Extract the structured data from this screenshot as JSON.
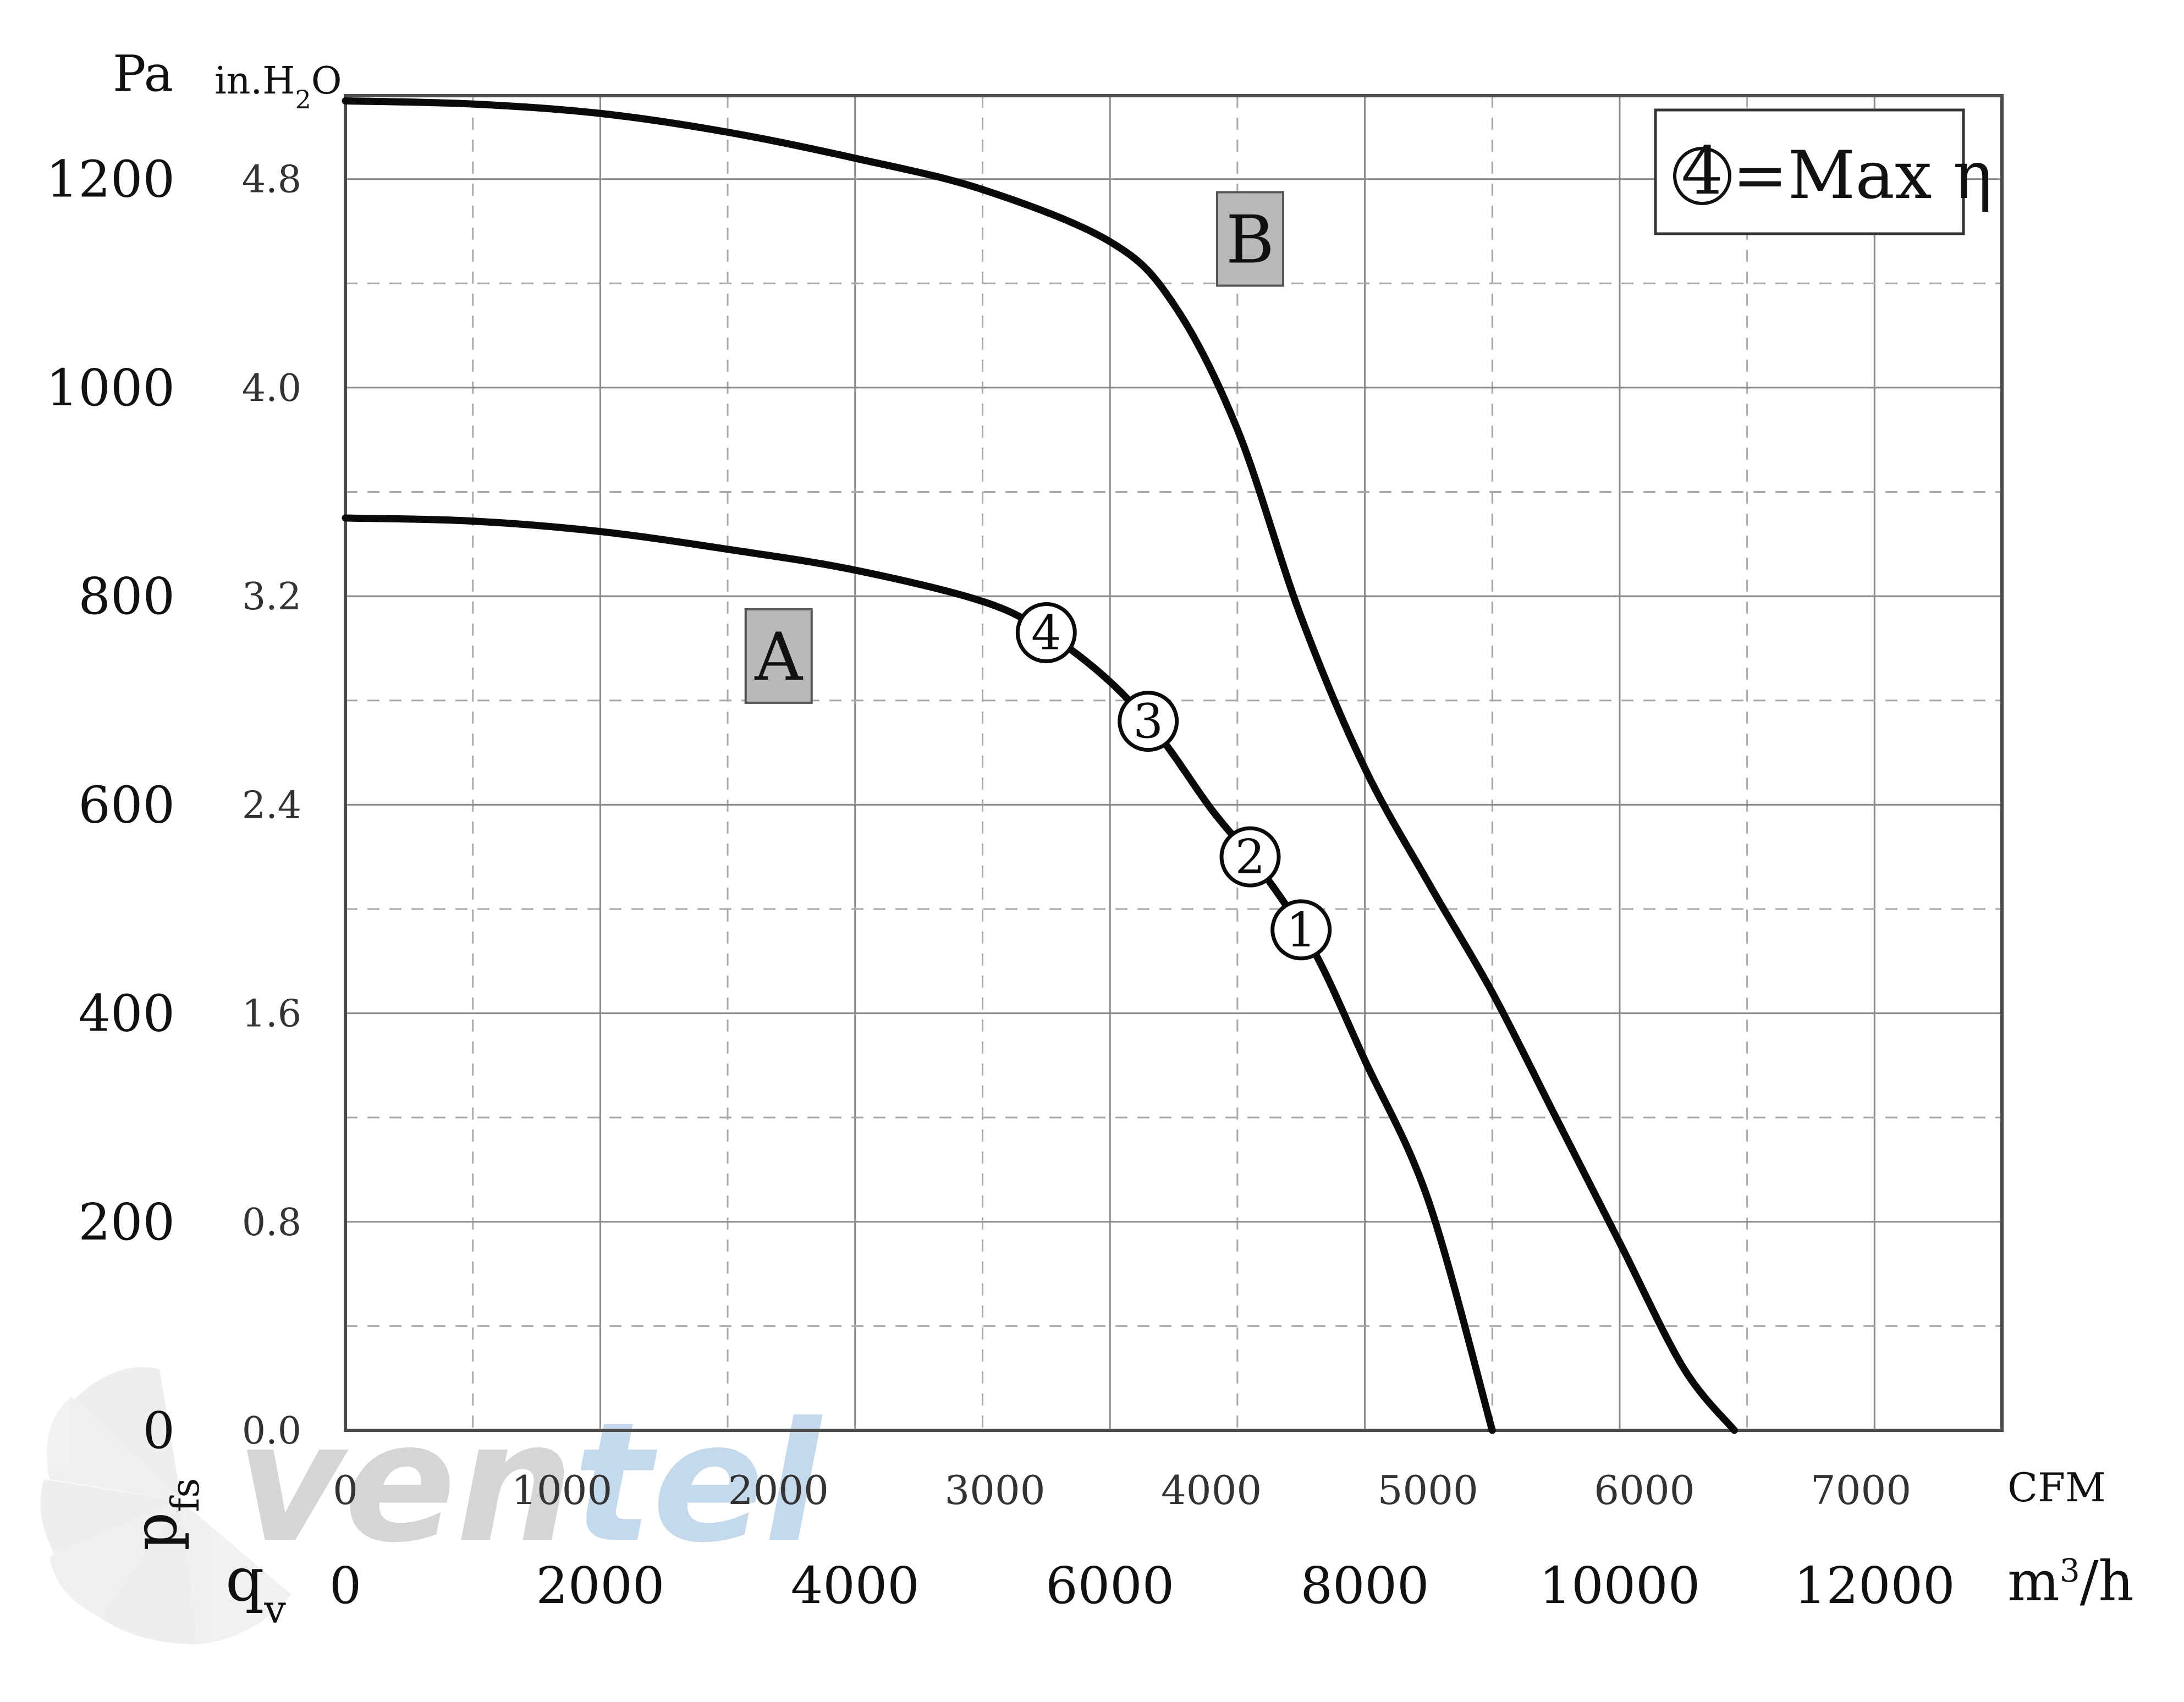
{
  "chart_data": {
    "type": "line",
    "title": "",
    "y_axis_primary": {
      "unit": "Pa",
      "ticks": [
        "0",
        "200",
        "400",
        "600",
        "800",
        "1000",
        "1200"
      ],
      "ylim": [
        0,
        1280
      ]
    },
    "y_axis_secondary": {
      "unit_main": "in.H",
      "unit_sub": "2",
      "unit_end": "O",
      "ticks": [
        "0.0",
        "0.8",
        "1.6",
        "2.4",
        "3.2",
        "4.0",
        "4.8"
      ]
    },
    "x_axis_cfm": {
      "unit": "CFM",
      "ticks": [
        "0",
        "1000",
        "2000",
        "3000",
        "4000",
        "5000",
        "6000",
        "7000"
      ]
    },
    "x_axis_m3h": {
      "unit_main": "m",
      "unit_sup": "3",
      "unit_end": "/h",
      "ticks": [
        "0",
        "2000",
        "4000",
        "6000",
        "8000",
        "10000",
        "12000"
      ],
      "xlim": [
        0,
        13000
      ]
    },
    "ylabel_symbol": {
      "main": "p",
      "sub": "fs"
    },
    "xlabel_symbol": {
      "main": "q",
      "sub": "v"
    },
    "series": [
      {
        "name": "A",
        "x": [
          0,
          1000,
          2000,
          3000,
          4000,
          5000,
          5500,
          6000,
          6400,
          6800,
          7200,
          7600,
          8000,
          8500,
          9000
        ],
        "y": [
          875,
          872,
          862,
          845,
          825,
          795,
          765,
          718,
          664,
          595,
          535,
          460,
          355,
          220,
          0
        ]
      },
      {
        "name": "B",
        "x": [
          0,
          1000,
          2000,
          3000,
          4000,
          5000,
          6000,
          6500,
          7000,
          7500,
          8000,
          8500,
          9000,
          9500,
          10000,
          10500,
          10900
        ],
        "y": [
          1275,
          1272,
          1263,
          1245,
          1220,
          1190,
          1140,
          1080,
          960,
          780,
          635,
          525,
          420,
          300,
          180,
          60,
          0
        ]
      }
    ],
    "operating_points": [
      {
        "label": "4",
        "x": 5500,
        "y": 765
      },
      {
        "label": "3",
        "x": 6300,
        "y": 680
      },
      {
        "label": "2",
        "x": 7100,
        "y": 550
      },
      {
        "label": "1",
        "x": 7500,
        "y": 480
      }
    ],
    "curve_labels": [
      {
        "text": "A",
        "x": 3400,
        "y": 740
      },
      {
        "text": "B",
        "x": 7100,
        "y": 1140
      }
    ],
    "legend": {
      "symbol": "4",
      "text": "=Max η",
      "position": "top-right"
    }
  },
  "watermark": {
    "text_gray": "ven",
    "text_blue": "tel",
    "gray_color": "#c8c8c8",
    "blue_color": "#bcd3ea"
  }
}
